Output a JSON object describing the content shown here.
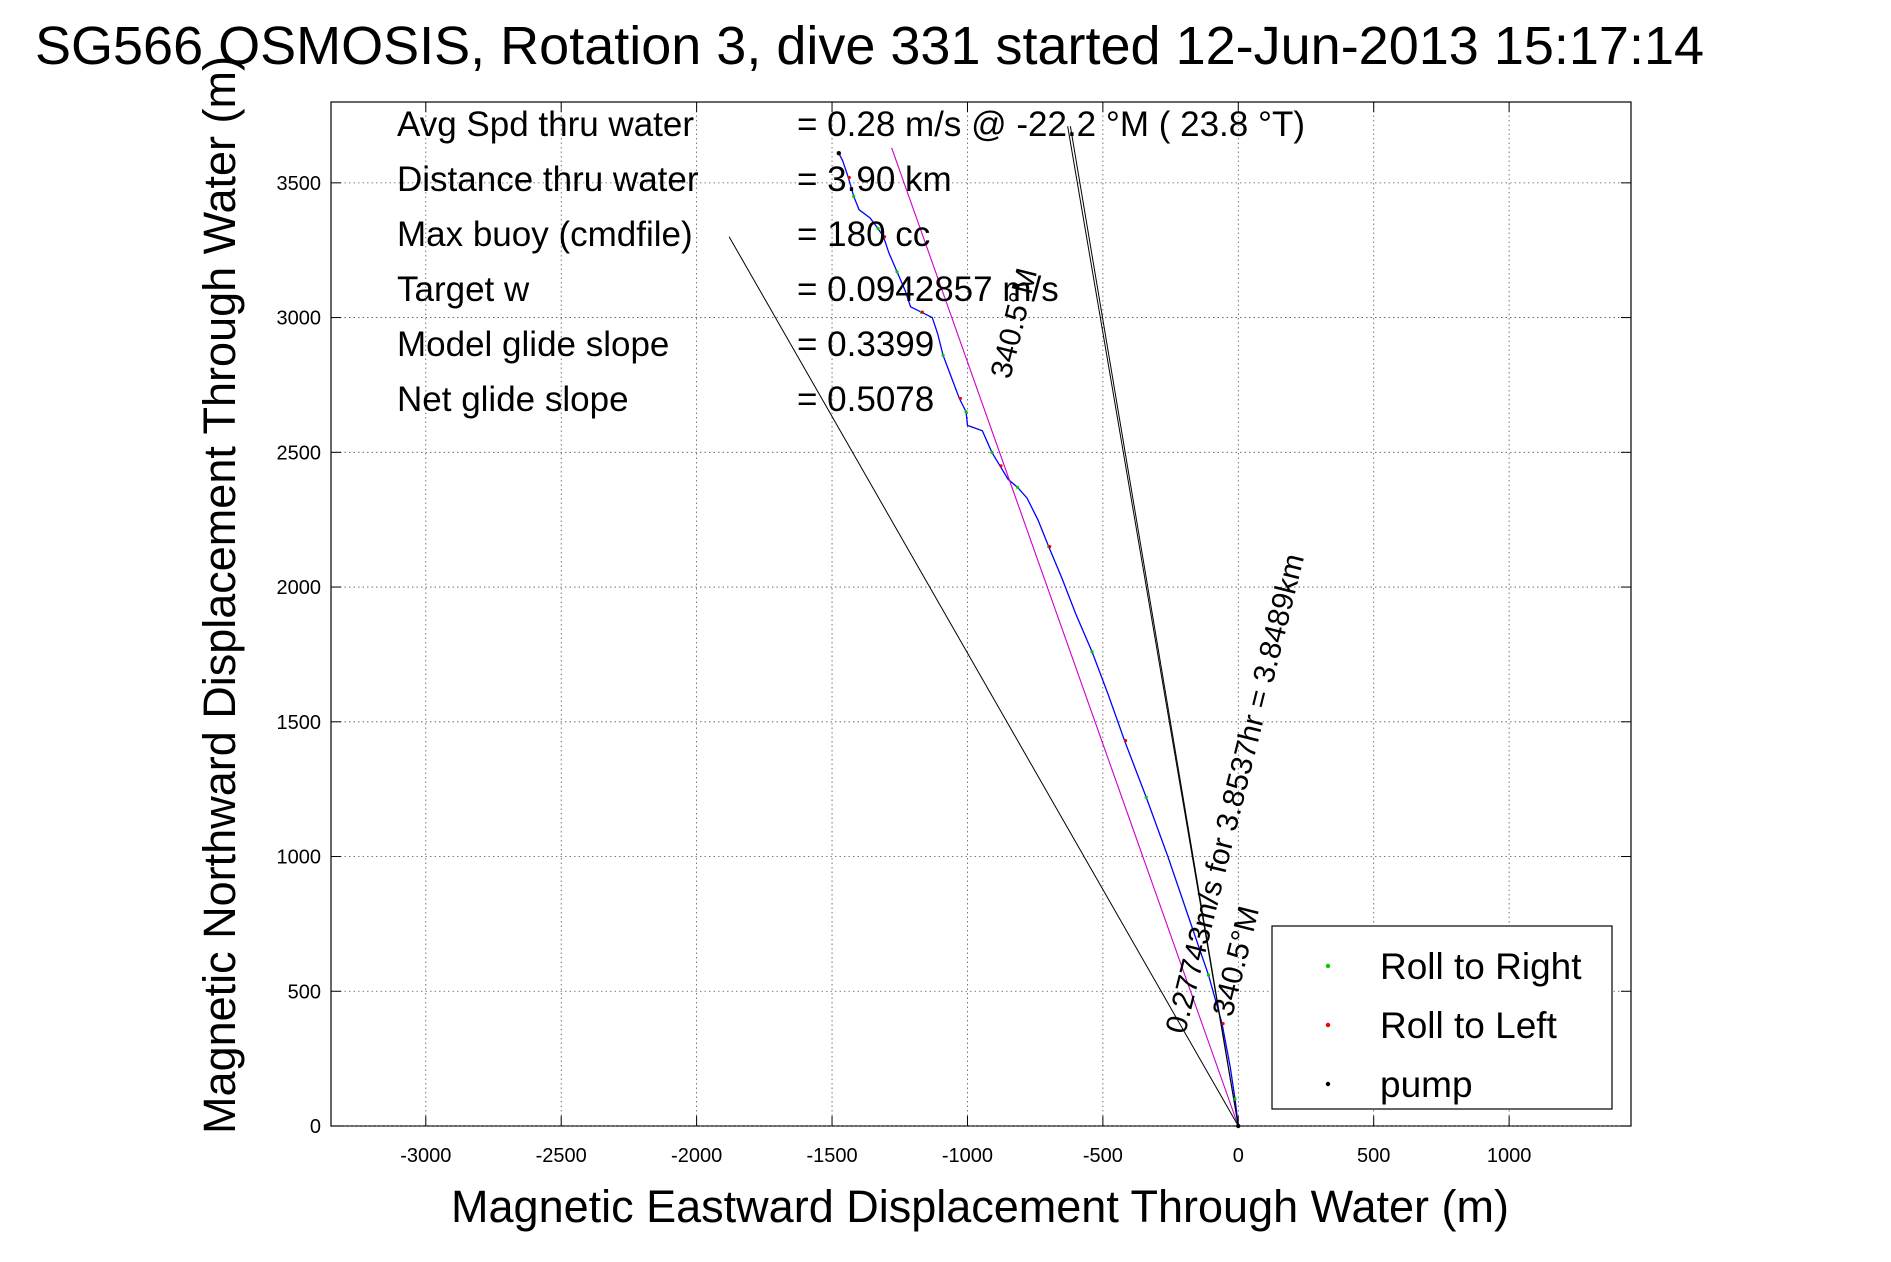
{
  "chart_data": {
    "type": "line",
    "title": "SG566 OSMOSIS, Rotation 3, dive 331 started 12-Jun-2013 15:17:14",
    "xlabel": "Magnetic Eastward Displacement Through Water (m)",
    "ylabel": "Magnetic Northward Displacement Through Water (m)",
    "xlim": [
      -3350,
      1450
    ],
    "ylim": [
      0,
      3800
    ],
    "xticks": [
      "-3000",
      "-2500",
      "-2000",
      "-1500",
      "-1000",
      "-500",
      "0",
      "500",
      "1000"
    ],
    "yticks": [
      "0",
      "500",
      "1000",
      "1500",
      "2000",
      "2500",
      "3000",
      "3500"
    ],
    "grid": true,
    "legend_position": "bottom-right",
    "info_lines": [
      {
        "label": "Avg Spd thru water",
        "value": "=  0.28 m/s @ -22.2 °M ( 23.8 °T)"
      },
      {
        "label": "Distance thru water",
        "value": "=  3.90 km"
      },
      {
        "label": "Max buoy (cmdfile)",
        "value": "= 180 cc"
      },
      {
        "label": "Target w",
        "value": "= 0.0942857 m/s"
      },
      {
        "label": "Model glide slope",
        "value": "= 0.3399"
      },
      {
        "label": "Net glide slope",
        "value": "= 0.5078"
      }
    ],
    "annotations": {
      "heading_top": "340.5°M",
      "speed_line": "0.27743m/s for 3.8537hr = 3.8489km",
      "heading_bottom": "340.5°M"
    },
    "legend": [
      {
        "name": "Roll to Right",
        "color": "#00cc00"
      },
      {
        "name": "Roll to Left",
        "color": "#ee0000"
      },
      {
        "name": "pump",
        "color": "#000000"
      }
    ],
    "series": [
      {
        "name": "track",
        "color": "#0000ff",
        "x": [
          0,
          -12,
          -30,
          -60,
          -110,
          -175,
          -260,
          -340,
          -420,
          -480,
          -540,
          -600,
          -650,
          -700,
          -740,
          -780,
          -815,
          -850,
          -880,
          -910,
          -945,
          -1000,
          -1005,
          -1030,
          -1060,
          -1090,
          -1110,
          -1130,
          -1170,
          -1210,
          -1230,
          -1260,
          -1290,
          -1310,
          -1330,
          -1360,
          -1400,
          -1420,
          -1440,
          -1460,
          -1475
        ],
        "y": [
          0,
          100,
          220,
          380,
          560,
          750,
          1000,
          1220,
          1430,
          1600,
          1760,
          1900,
          2030,
          2150,
          2250,
          2330,
          2370,
          2400,
          2450,
          2500,
          2580,
          2600,
          2650,
          2700,
          2780,
          2860,
          2940,
          3000,
          3020,
          3040,
          3100,
          3170,
          3240,
          3300,
          3330,
          3370,
          3400,
          3450,
          3520,
          3580,
          3610
        ]
      },
      {
        "name": "net track",
        "color": "#cc00cc",
        "x": [
          0,
          -1280
        ],
        "y": [
          0,
          3630
        ]
      },
      {
        "name": "glide wedge",
        "color": "#000000",
        "x": [
          0,
          -1880,
          0,
          -630,
          0,
          -620
        ],
        "y": [
          0,
          3300,
          0,
          3710,
          0,
          3710
        ]
      }
    ]
  }
}
